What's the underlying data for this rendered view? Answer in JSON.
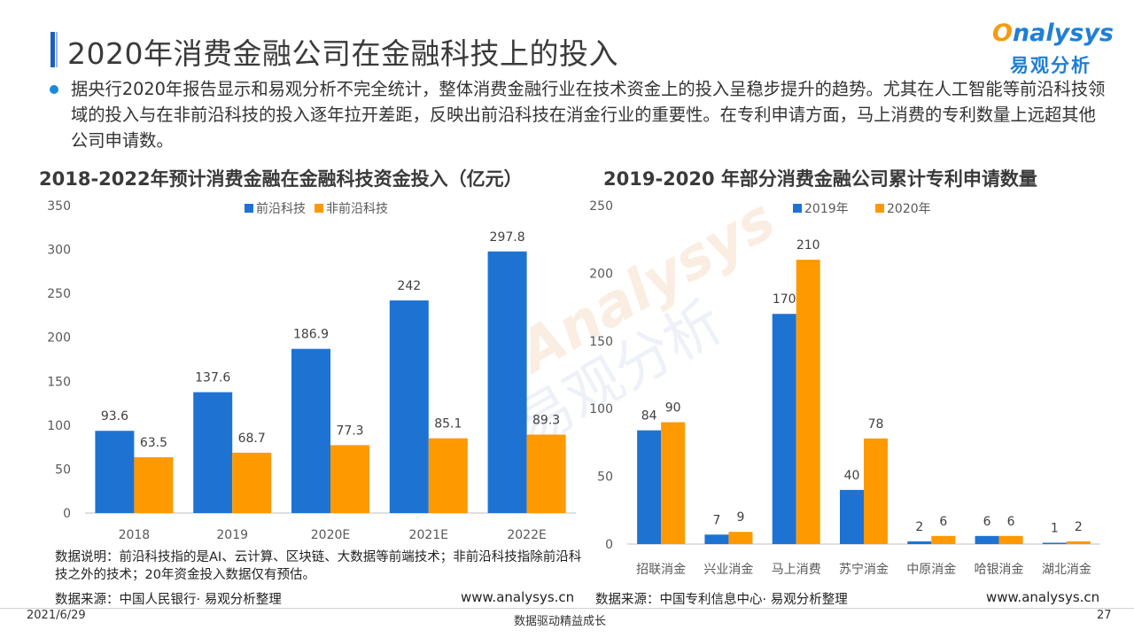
{
  "header": {
    "title": "2020年消费金融公司在金融科技上的投入",
    "logo_en_o": "O",
    "logo_en_rest": "nalysys",
    "logo_cn": "易观分析"
  },
  "summary": "据央行2020年报告显示和易观分析不完全统计，整体消费金融行业在技术资金上的投入呈稳步提升的趋势。尤其在人工智能等前沿科技领域的投入与在非前沿科技的投入逐年拉开差距，反映出前沿科技在消金行业的重要性。在专利申请方面，马上消费的专利数量上远超其他公司申请数。",
  "watermark": {
    "en": "Analysys",
    "cn": "易观分析"
  },
  "colors": {
    "blue": "#1e73d2",
    "orange": "#ff9900"
  },
  "chart_data": [
    {
      "type": "bar",
      "title": "2018-2022年预计消费金融在金融科技资金投入（亿元）",
      "categories": [
        "2018",
        "2019",
        "2020E",
        "2021E",
        "2022E"
      ],
      "series": [
        {
          "name": "前沿科技",
          "values": [
            93.6,
            137.6,
            186.9,
            242,
            297.8
          ]
        },
        {
          "name": "非前沿科技",
          "values": [
            63.5,
            68.7,
            77.3,
            85.1,
            89.3
          ]
        }
      ],
      "value_labels": [
        [
          "93.6",
          "137.6",
          "186.9",
          "242",
          "297.8"
        ],
        [
          "63.5",
          "68.7",
          "77.3",
          "85.1",
          "89.3"
        ]
      ],
      "yticks": [
        "0",
        "50",
        "100",
        "150",
        "200",
        "250",
        "300",
        "350"
      ],
      "ylim": [
        0,
        350
      ],
      "legend": "top"
    },
    {
      "type": "bar",
      "title": "2019-2020 年部分消费金融公司累计专利申请数量",
      "categories": [
        "招联消金",
        "兴业消金",
        "马上消费",
        "苏宁消金",
        "中原消金",
        "哈银消金",
        "湖北消金"
      ],
      "series": [
        {
          "name": "2019年",
          "values": [
            84,
            7,
            170,
            40,
            2,
            6,
            1
          ]
        },
        {
          "name": "2020年",
          "values": [
            90,
            9,
            210,
            78,
            6,
            6,
            2
          ]
        }
      ],
      "value_labels": [
        [
          "84",
          "7",
          "170",
          "40",
          "2",
          "6",
          "1"
        ],
        [
          "90",
          "9",
          "210",
          "78",
          "6",
          "6",
          "2"
        ]
      ],
      "yticks": [
        "0",
        "50",
        "100",
        "150",
        "200",
        "250"
      ],
      "ylim": [
        0,
        250
      ],
      "legend": "top"
    }
  ],
  "notes": {
    "left_note": "数据说明：前沿科技指的是AI、云计算、区块链、大数据等前端技术；非前沿科技指除前沿科技之外的技术；20年资金投入数据仅有预估。",
    "left_source": "数据来源：中国人民银行· 易观分析整理",
    "right_source": "数据来源：中国专利信息中心· 易观分析整理",
    "url_left": "www.analysys.cn",
    "url_right": "www.analysys.cn"
  },
  "footer": {
    "date": "2021/6/29",
    "slogan": "数据驱动精益成长",
    "page": "27"
  }
}
